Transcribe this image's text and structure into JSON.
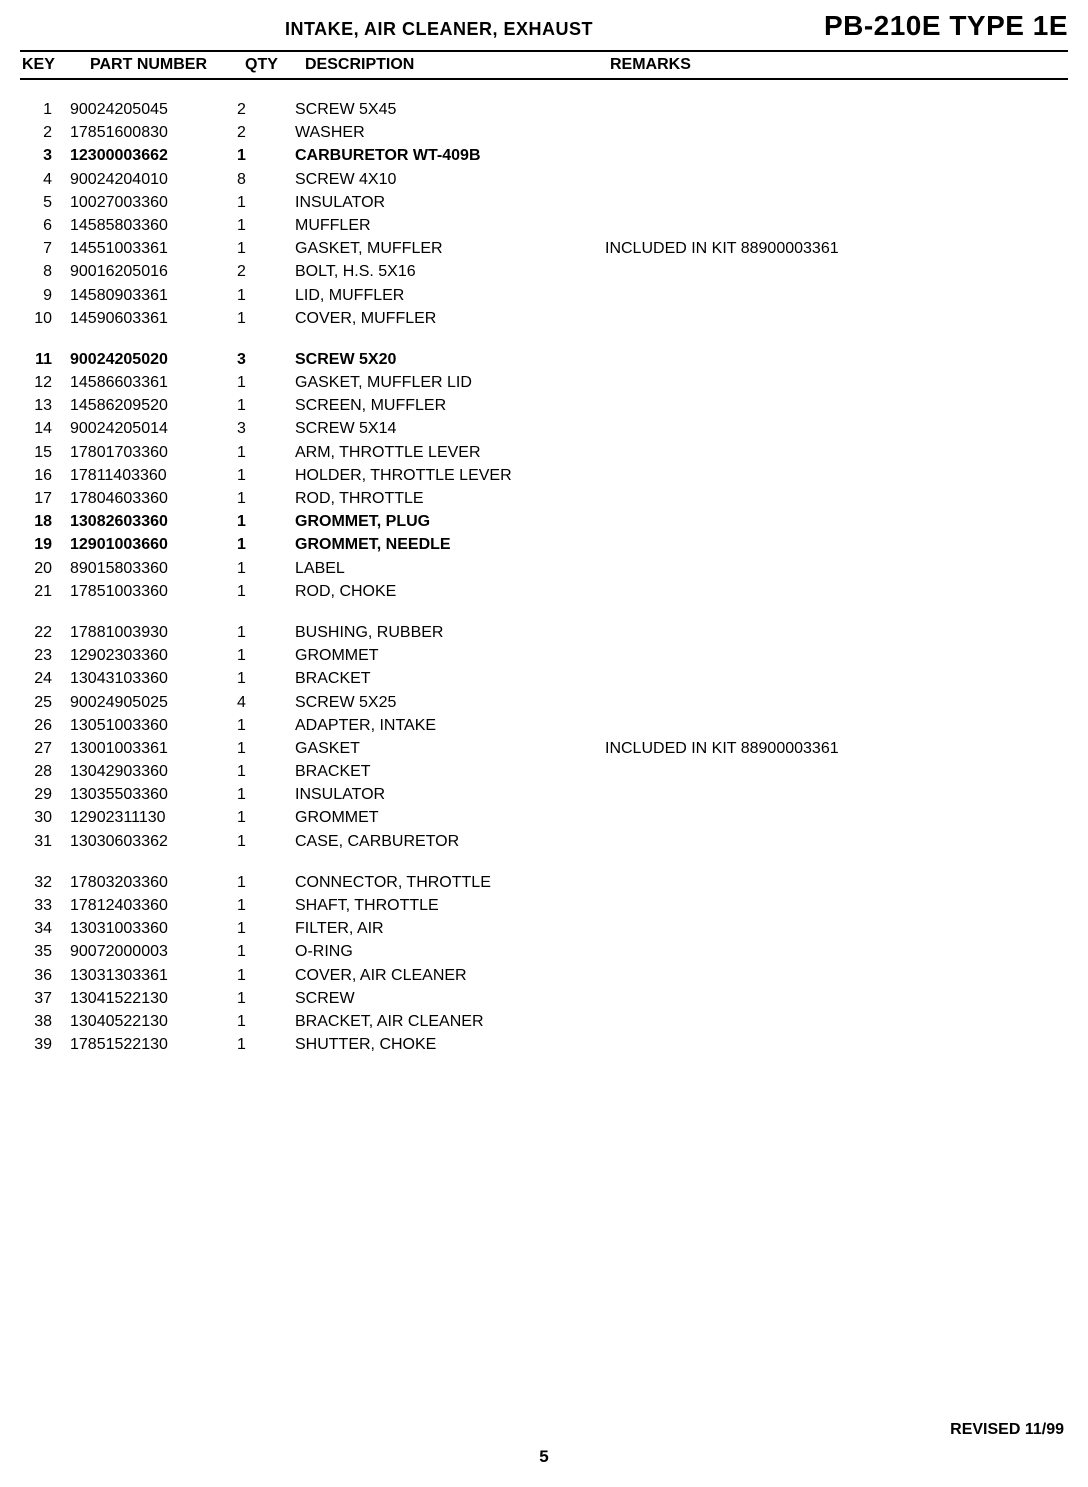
{
  "header": {
    "section_title": "INTAKE, AIR CLEANER, EXHAUST",
    "model_title": "PB-210E TYPE 1E"
  },
  "columns": {
    "key": "KEY",
    "part_number": "PART NUMBER",
    "qty": "QTY",
    "description": "DESCRIPTION",
    "remarks": "REMARKS"
  },
  "parts": [
    {
      "key": "1",
      "part": "90024205045",
      "qty": "2",
      "desc": "SCREW 5X45",
      "remarks": "",
      "bold": false
    },
    {
      "key": "2",
      "part": "17851600830",
      "qty": "2",
      "desc": "WASHER",
      "remarks": "",
      "bold": false
    },
    {
      "key": "3",
      "part": "12300003662",
      "qty": "1",
      "desc": "CARBURETOR WT-409B",
      "remarks": "",
      "bold": true
    },
    {
      "key": "4",
      "part": "90024204010",
      "qty": "8",
      "desc": "SCREW 4X10",
      "remarks": "",
      "bold": false
    },
    {
      "key": "5",
      "part": "10027003360",
      "qty": "1",
      "desc": "INSULATOR",
      "remarks": "",
      "bold": false
    },
    {
      "key": "6",
      "part": "14585803360",
      "qty": "1",
      "desc": "MUFFLER",
      "remarks": "",
      "bold": false
    },
    {
      "key": "7",
      "part": "14551003361",
      "qty": "1",
      "desc": "GASKET, MUFFLER",
      "remarks": "INCLUDED IN KIT 88900003361",
      "bold": false
    },
    {
      "key": "8",
      "part": "90016205016",
      "qty": "2",
      "desc": "BOLT, H.S. 5X16",
      "remarks": "",
      "bold": false
    },
    {
      "key": "9",
      "part": "14580903361",
      "qty": "1",
      "desc": "LID, MUFFLER",
      "remarks": "",
      "bold": false
    },
    {
      "key": "10",
      "part": "14590603361",
      "qty": "1",
      "desc": "COVER, MUFFLER",
      "remarks": "",
      "bold": false
    },
    {
      "gap": true
    },
    {
      "key": "11",
      "part": "90024205020",
      "qty": "3",
      "desc": "SCREW 5X20",
      "remarks": "",
      "bold": true
    },
    {
      "key": "12",
      "part": "14586603361",
      "qty": "1",
      "desc": "GASKET, MUFFLER LID",
      "remarks": "",
      "bold": false
    },
    {
      "key": "13",
      "part": "14586209520",
      "qty": "1",
      "desc": "SCREEN, MUFFLER",
      "remarks": "",
      "bold": false
    },
    {
      "key": "14",
      "part": "90024205014",
      "qty": "3",
      "desc": "SCREW 5X14",
      "remarks": "",
      "bold": false
    },
    {
      "key": "15",
      "part": "17801703360",
      "qty": "1",
      "desc": "ARM, THROTTLE LEVER",
      "remarks": "",
      "bold": false
    },
    {
      "key": "16",
      "part": "17811403360",
      "qty": "1",
      "desc": "HOLDER, THROTTLE LEVER",
      "remarks": "",
      "bold": false
    },
    {
      "key": "17",
      "part": "17804603360",
      "qty": "1",
      "desc": "ROD, THROTTLE",
      "remarks": "",
      "bold": false
    },
    {
      "key": "18",
      "part": "13082603360",
      "qty": "1",
      "desc": "GROMMET, PLUG",
      "remarks": "",
      "bold": true
    },
    {
      "key": "19",
      "part": "12901003660",
      "qty": "1",
      "desc": "GROMMET, NEEDLE",
      "remarks": "",
      "bold": true
    },
    {
      "key": "20",
      "part": "89015803360",
      "qty": "1",
      "desc": "LABEL",
      "remarks": "",
      "bold": false
    },
    {
      "key": "21",
      "part": "17851003360",
      "qty": "1",
      "desc": "ROD, CHOKE",
      "remarks": "",
      "bold": false
    },
    {
      "gap": true
    },
    {
      "key": "22",
      "part": "17881003930",
      "qty": "1",
      "desc": "BUSHING, RUBBER",
      "remarks": "",
      "bold": false
    },
    {
      "key": "23",
      "part": "12902303360",
      "qty": "1",
      "desc": "GROMMET",
      "remarks": "",
      "bold": false
    },
    {
      "key": "24",
      "part": "13043103360",
      "qty": "1",
      "desc": "BRACKET",
      "remarks": "",
      "bold": false
    },
    {
      "key": "25",
      "part": "90024905025",
      "qty": "4",
      "desc": "SCREW 5X25",
      "remarks": "",
      "bold": false
    },
    {
      "key": "26",
      "part": "13051003360",
      "qty": "1",
      "desc": "ADAPTER, INTAKE",
      "remarks": "",
      "bold": false
    },
    {
      "key": "27",
      "part": "13001003361",
      "qty": "1",
      "desc": "GASKET",
      "remarks": "INCLUDED IN KIT 88900003361",
      "bold": false
    },
    {
      "key": "28",
      "part": "13042903360",
      "qty": "1",
      "desc": "BRACKET",
      "remarks": "",
      "bold": false
    },
    {
      "key": "29",
      "part": "13035503360",
      "qty": "1",
      "desc": "INSULATOR",
      "remarks": "",
      "bold": false
    },
    {
      "key": "30",
      "part": "12902311130",
      "qty": "1",
      "desc": "GROMMET",
      "remarks": "",
      "bold": false
    },
    {
      "key": "31",
      "part": "13030603362",
      "qty": "1",
      "desc": "CASE, CARBURETOR",
      "remarks": "",
      "bold": false
    },
    {
      "gap": true
    },
    {
      "key": "32",
      "part": "17803203360",
      "qty": "1",
      "desc": "CONNECTOR, THROTTLE",
      "remarks": "",
      "bold": false
    },
    {
      "key": "33",
      "part": "17812403360",
      "qty": "1",
      "desc": "SHAFT, THROTTLE",
      "remarks": "",
      "bold": false
    },
    {
      "key": "34",
      "part": "13031003360",
      "qty": "1",
      "desc": "FILTER, AIR",
      "remarks": "",
      "bold": false
    },
    {
      "key": "35",
      "part": "90072000003",
      "qty": "1",
      "desc": "O-RING",
      "remarks": "",
      "bold": false
    },
    {
      "key": "36",
      "part": "13031303361",
      "qty": "1",
      "desc": "COVER, AIR CLEANER",
      "remarks": "",
      "bold": false
    },
    {
      "key": "37",
      "part": "13041522130",
      "qty": "1",
      "desc": "SCREW",
      "remarks": "",
      "bold": false
    },
    {
      "key": "38",
      "part": "13040522130",
      "qty": "1",
      "desc": "BRACKET, AIR CLEANER",
      "remarks": "",
      "bold": false
    },
    {
      "key": "39",
      "part": "17851522130",
      "qty": "1",
      "desc": "SHUTTER, CHOKE",
      "remarks": "",
      "bold": false
    }
  ],
  "footer": {
    "page_number": "5",
    "revised": "REVISED 11/99"
  }
}
